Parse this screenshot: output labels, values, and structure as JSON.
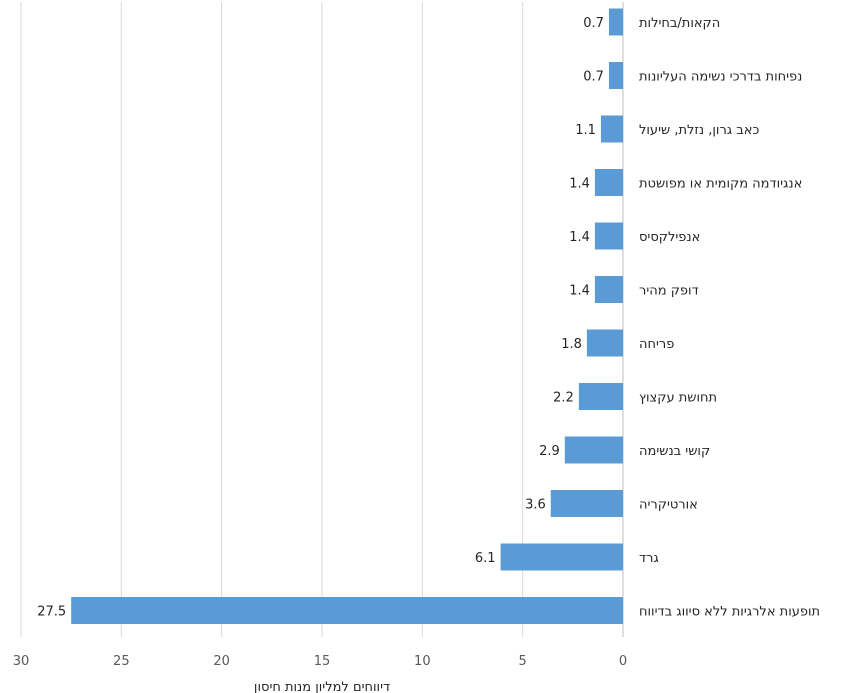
{
  "chart_data": {
    "type": "bar",
    "orientation": "horizontal",
    "x_direction": "reversed",
    "categories": [
      "הקאות/בחילות",
      "נפיחות בדרכי נשימה העליונות",
      "כאב גרון, נזלת, שיעול",
      "אנגיודמה מקומית או מפושטת",
      "אנפילקסיס",
      "דופק מהיר",
      "פריחה",
      "תחושת עקצוץ",
      "קושי בנשימה",
      "אורטיקריה",
      "גרד",
      "תופעות אלרגיות ללא סיווג בדיווח"
    ],
    "values": [
      0.7,
      0.7,
      1.1,
      1.4,
      1.4,
      1.4,
      1.8,
      2.2,
      2.9,
      3.6,
      6.1,
      27.5
    ],
    "value_labels": [
      "0.7",
      "0.7",
      "1.1",
      "1.4",
      "1.4",
      "1.4",
      "1.8",
      "2.2",
      "2.9",
      "3.6",
      "6.1",
      "27.5"
    ],
    "xlim": [
      0,
      30
    ],
    "xticks": [
      "0",
      "5",
      "10",
      "15",
      "20",
      "25",
      "30"
    ],
    "xlabel": "דיווחים למליון מנות חיסון",
    "ylabel": "",
    "title": "",
    "grid": "vertical",
    "bar_color": "#5b9bd5",
    "grid_color": "#d9d9d9"
  }
}
